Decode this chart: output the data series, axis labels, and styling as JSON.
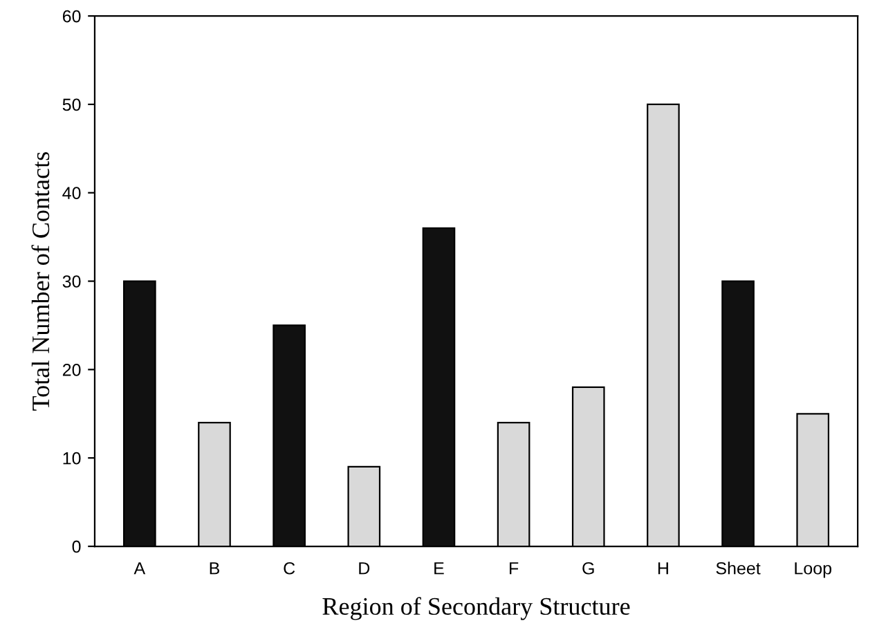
{
  "chart_data": {
    "type": "bar",
    "xlabel": "Region of Secondary Structure",
    "ylabel": "Total Number of Contacts",
    "categories": [
      "A",
      "B",
      "C",
      "D",
      "E",
      "F",
      "G",
      "H",
      "Sheet",
      "Loop"
    ],
    "values": [
      30,
      14,
      25,
      9,
      36,
      14,
      18,
      50,
      30,
      15
    ],
    "colors": [
      "#111111",
      "#d9d9d9",
      "#111111",
      "#d9d9d9",
      "#111111",
      "#d9d9d9",
      "#d9d9d9",
      "#d9d9d9",
      "#111111",
      "#d9d9d9"
    ],
    "ylim": [
      0,
      60
    ],
    "yticks": [
      0,
      10,
      20,
      30,
      40,
      50,
      60
    ],
    "grid": false
  }
}
